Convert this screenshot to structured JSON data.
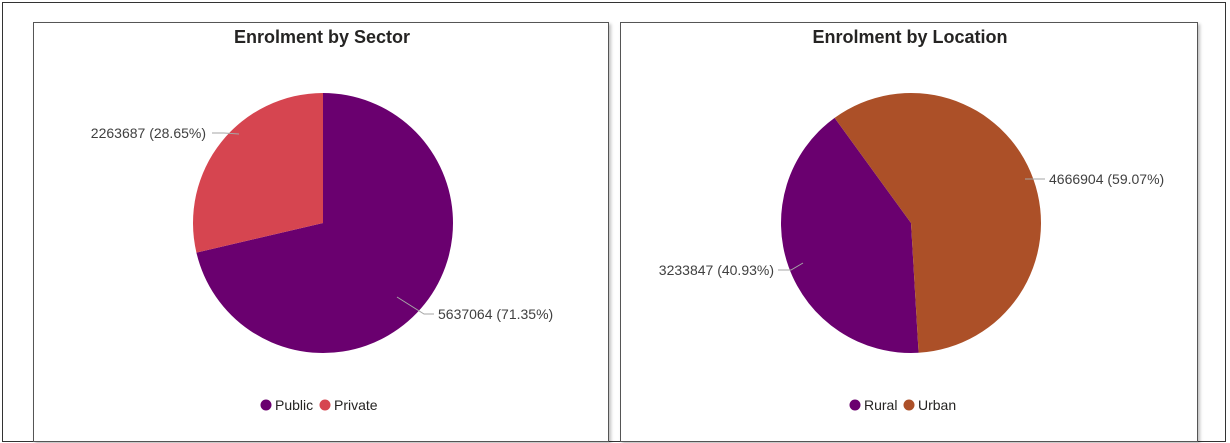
{
  "chart_data": [
    {
      "type": "pie",
      "title": "Enrolment by Sector",
      "legend_position": "bottom",
      "slices": [
        {
          "name": "Public",
          "value": 5637064,
          "label": "5637064 (71.35%)",
          "color": "#6a006f"
        },
        {
          "name": "Private",
          "value": 2263687,
          "label": "2263687 (28.65%)",
          "color": "#d64550"
        }
      ]
    },
    {
      "type": "pie",
      "title": "Enrolment by Location",
      "legend_position": "bottom",
      "slices": [
        {
          "name": "Rural",
          "value": 3233847,
          "label": "3233847 (40.93%)",
          "color": "#6a006f"
        },
        {
          "name": "Urban",
          "value": 4666904,
          "label": "4666904 (59.07%)",
          "color": "#ac5028"
        }
      ]
    }
  ]
}
